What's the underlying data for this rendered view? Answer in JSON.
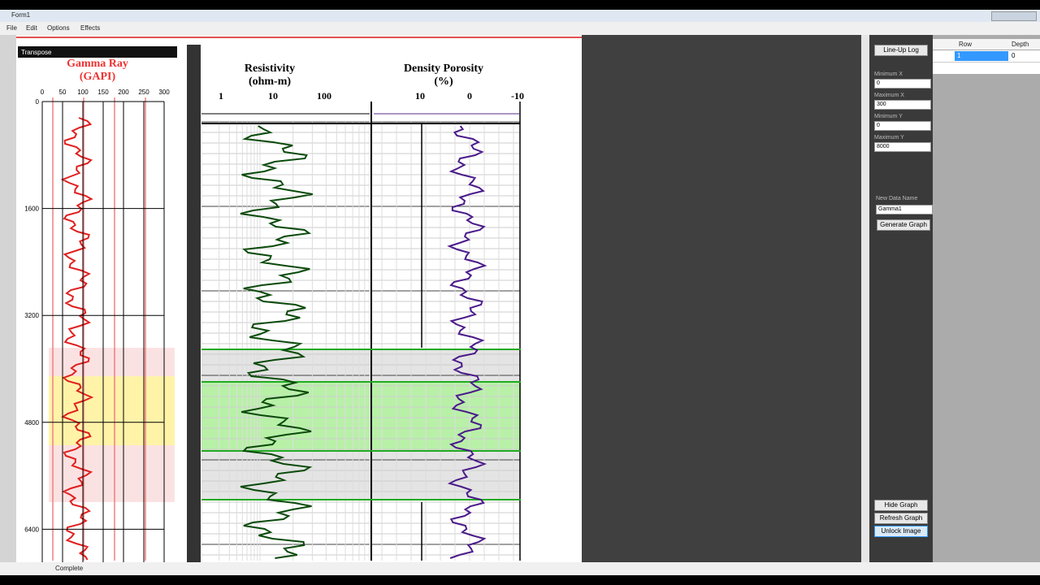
{
  "window": {
    "title": "Form1"
  },
  "menu": [
    "File",
    "Edit",
    "Options",
    "Effects"
  ],
  "image": {
    "transpose": "Transpose",
    "gamma": {
      "title": "Gamma Ray",
      "unit": "(GAPI)"
    },
    "resistivity": {
      "title": "Resistivity",
      "unit": "(ohm-m)",
      "scale": [
        "1",
        "10",
        "100"
      ]
    },
    "density": {
      "title": "Density Porosity",
      "unit": "(%)",
      "scale": [
        "10",
        "0",
        "-10"
      ]
    }
  },
  "overlay": {
    "xlim": [
      0,
      300
    ],
    "ylim": [
      0,
      8000
    ],
    "xticks": [
      0,
      50,
      100,
      150,
      200,
      250,
      300
    ],
    "yticks": [
      0,
      1600,
      3200,
      4800,
      6400
    ]
  },
  "panel": {
    "lineup": "Line-Up Log",
    "fields": [
      {
        "label": "Minimum X",
        "value": "0"
      },
      {
        "label": "Maximum X",
        "value": "300"
      },
      {
        "label": "Minimum Y",
        "value": "0"
      },
      {
        "label": "Maximum Y",
        "value": "8000"
      }
    ],
    "new_name_label": "New Data Name",
    "new_name": "Gamma1",
    "generate": "Generate Graph",
    "hide": "Hide Graph",
    "refresh": "Refresh Graph",
    "unlock": "Unlock Image"
  },
  "grid": {
    "headers": [
      "Row",
      "Depth"
    ],
    "rows": [
      [
        "1",
        "0"
      ]
    ]
  },
  "status": "Complete"
}
